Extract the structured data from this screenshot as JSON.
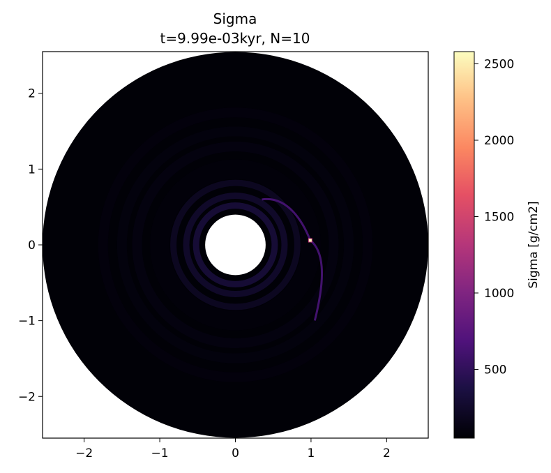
{
  "chart_data": {
    "type": "heatmap",
    "title": "Sigma",
    "subtitle": "t=9.99e-03kyr, N=10",
    "xlabel": "",
    "ylabel": "",
    "xlim": [
      -2.55,
      2.55
    ],
    "ylim": [
      -2.55,
      2.55
    ],
    "x_ticks": [
      -2,
      -1,
      0,
      1,
      2
    ],
    "y_ticks": [
      -2,
      -1,
      0,
      1,
      2
    ],
    "x_tick_labels": [
      "−2",
      "−1",
      "0",
      "1",
      "2"
    ],
    "y_tick_labels": [
      "−2",
      "−1",
      "0",
      "1",
      "2"
    ],
    "grid": false,
    "colormap": "magma",
    "disk": {
      "inner_radius": 0.4,
      "outer_radius": 2.55,
      "background_sigma": 100,
      "rings": [
        {
          "r": 0.52,
          "sigma": 420
        },
        {
          "r": 0.65,
          "sigma": 330
        },
        {
          "r": 0.82,
          "sigma": 260
        },
        {
          "r": 1.3,
          "sigma": 210
        },
        {
          "r": 1.5,
          "sigma": 180
        },
        {
          "r": 1.75,
          "sigma": 150
        }
      ],
      "gap_radius": 1.0,
      "planet": {
        "x": 0.99,
        "y": 0.06,
        "sigma": 2580
      }
    },
    "colorbar": {
      "label": "Sigma [g/cm2]",
      "min": 50,
      "max": 2580,
      "ticks": [
        500,
        1000,
        1500,
        2000,
        2500
      ],
      "tick_labels": [
        "500",
        "1000",
        "1500",
        "2000",
        "2500"
      ]
    }
  }
}
